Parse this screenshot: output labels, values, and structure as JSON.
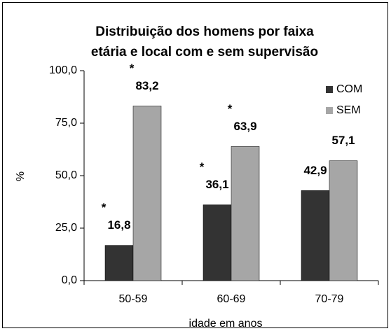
{
  "chart_data": {
    "type": "bar",
    "title": [
      "Distribuição dos homens por faixa",
      "etária e local com e sem supervisão"
    ],
    "xlabel": "idade em anos",
    "ylabel": "%",
    "categories": [
      "50-59",
      "60-69",
      "70-79"
    ],
    "series": [
      {
        "name": "COM",
        "color": "#333333",
        "values": [
          16.8,
          36.1,
          42.9
        ],
        "value_labels": [
          "16,8",
          "36,1",
          "42,9"
        ],
        "annotations": [
          "*",
          "*",
          null
        ]
      },
      {
        "name": "SEM",
        "color": "#a6a6a6",
        "values": [
          83.2,
          63.9,
          57.1
        ],
        "value_labels": [
          "83,2",
          "63,9",
          "57,1"
        ],
        "annotations": [
          "*",
          "*",
          null
        ]
      }
    ],
    "ylim": [
      0,
      100
    ],
    "yticks": [
      {
        "value": 0,
        "label": "0,0"
      },
      {
        "value": 25,
        "label": "25,0"
      },
      {
        "value": 50,
        "label": "50,0"
      },
      {
        "value": 75,
        "label": "75,0"
      },
      {
        "value": 100,
        "label": "100,0"
      }
    ],
    "legend": "right",
    "grid": false
  }
}
